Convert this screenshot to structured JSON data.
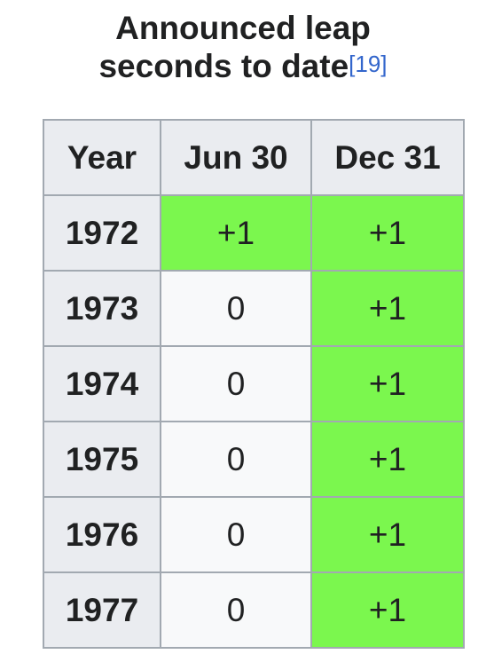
{
  "caption": {
    "line1": "Announced leap",
    "line2": "seconds to date",
    "ref": "[19]"
  },
  "table": {
    "headers": [
      "Year",
      "Jun 30",
      "Dec 31"
    ],
    "rows": [
      {
        "year": "1972",
        "jun30": "+1",
        "dec31": "+1"
      },
      {
        "year": "1973",
        "jun30": "0",
        "dec31": "+1"
      },
      {
        "year": "1974",
        "jun30": "0",
        "dec31": "+1"
      },
      {
        "year": "1975",
        "jun30": "0",
        "dec31": "+1"
      },
      {
        "year": "1976",
        "jun30": "0",
        "dec31": "+1"
      },
      {
        "year": "1977",
        "jun30": "0",
        "dec31": "+1"
      }
    ]
  },
  "colors": {
    "positive": "#7bf74e",
    "header": "#eaecf0",
    "cell": "#f8f9fa",
    "border": "#a2a9b1",
    "link": "#3366cc"
  }
}
